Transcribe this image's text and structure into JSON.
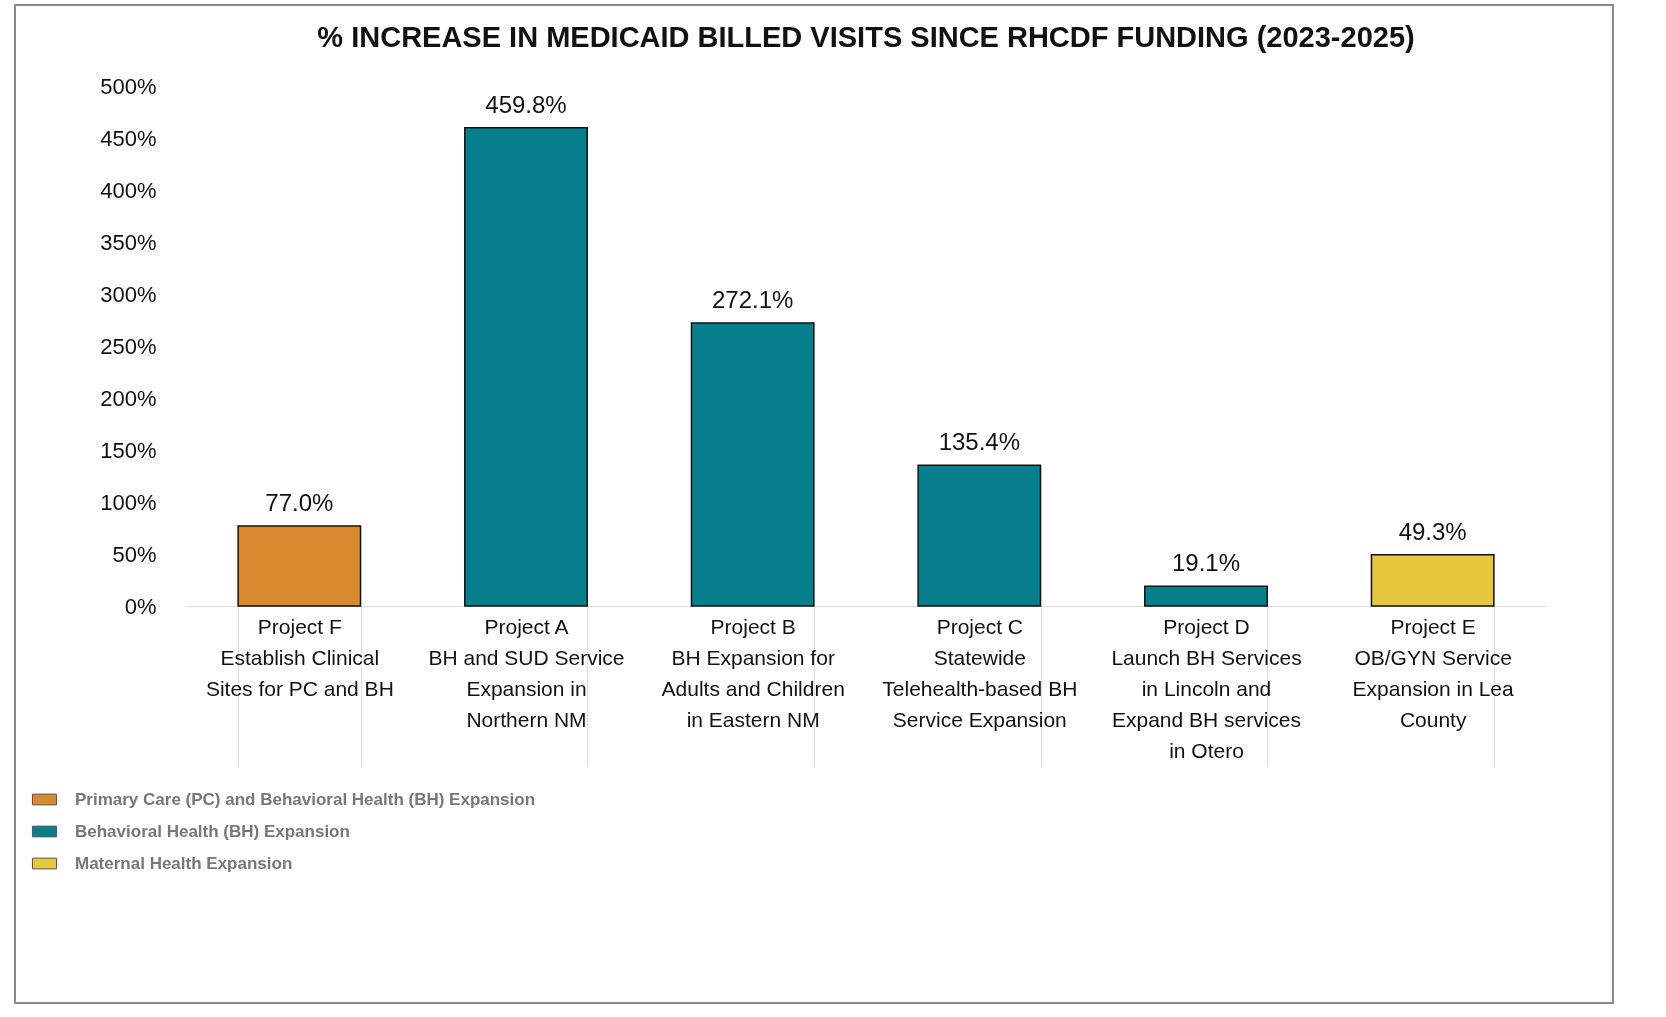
{
  "chart_data": {
    "type": "bar",
    "title": "% INCREASE IN MEDICAID BILLED VISITS SINCE RHCDF FUNDING (2023-2025)",
    "categories": [
      "Project F\nEstablish Clinical Sites for PC and BH",
      "Project A\nBH and SUD Service Expansion in Northern NM",
      "Project B\nBH Expansion for Adults and Children in Eastern NM",
      "Project C\nStatewide Telehealth-based BH Service Expansion",
      "Project D\nLaunch BH Services in Lincoln and Expand BH services in Otero",
      "Project E\nOB/GYN Service Expansion in Lea County"
    ],
    "series": [
      {
        "name": "Primary Care (PC) and Behavioral Health (BH) Expansion",
        "color": "#d98a2e",
        "values": [
          77.0,
          null,
          null,
          null,
          null,
          null
        ]
      },
      {
        "name": "Behavioral Health (BH) Expansion",
        "color": "#087f8c",
        "values": [
          null,
          459.8,
          272.1,
          135.4,
          19.1,
          null
        ]
      },
      {
        "name": "Maternal Health Expansion",
        "color": "#e6c73e",
        "values": [
          null,
          null,
          null,
          null,
          null,
          49.3
        ]
      }
    ],
    "value_labels": [
      "77.0%",
      "459.8%",
      "272.1%",
      "135.4%",
      "19.1%",
      "49.3%"
    ],
    "ylim": [
      0,
      500
    ],
    "yticks": [
      {
        "value": 0,
        "label": "0%"
      },
      {
        "value": 50,
        "label": "50%"
      },
      {
        "value": 100,
        "label": "100%"
      },
      {
        "value": 150,
        "label": "150%"
      },
      {
        "value": 200,
        "label": "200%"
      },
      {
        "value": 250,
        "label": "250%"
      },
      {
        "value": 300,
        "label": "300%"
      },
      {
        "value": 350,
        "label": "350%"
      },
      {
        "value": 400,
        "label": "400%"
      },
      {
        "value": 450,
        "label": "450%"
      },
      {
        "value": 500,
        "label": "500%"
      }
    ],
    "grid": false,
    "legend": "bottom left"
  }
}
